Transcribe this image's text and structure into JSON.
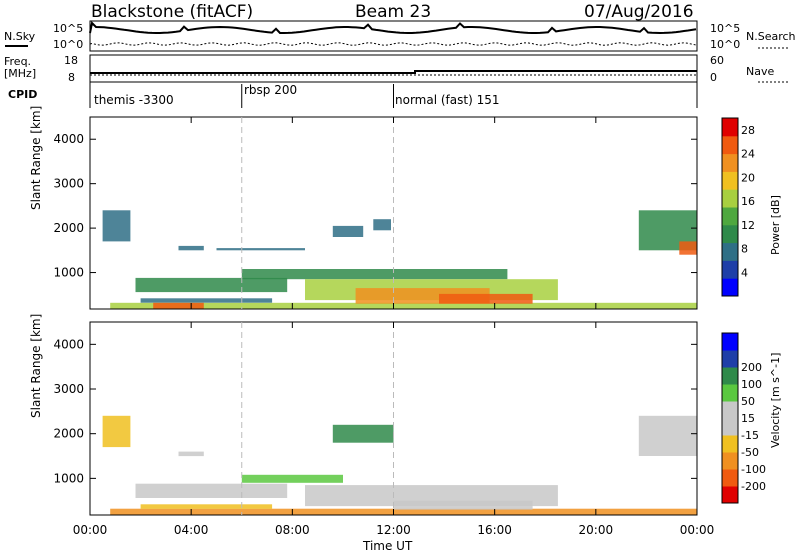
{
  "header": {
    "station": "Blackstone (fitACF)",
    "beam": "Beam 23",
    "date": "07/Aug/2016"
  },
  "nsky_panel": {
    "left_label": "N.Sky",
    "right_label": "N.Search",
    "left_ticks": [
      "10^5",
      "10^0"
    ],
    "right_ticks": [
      "10^5",
      "10^0"
    ]
  },
  "freq_panel": {
    "left_label_1": "Freq.",
    "left_label_2": "[MHz]",
    "right_label": "Nave",
    "left_ticks": [
      "18",
      "8"
    ],
    "right_ticks": [
      "60",
      "0"
    ]
  },
  "cpid_panel": {
    "label": "CPID",
    "modes": [
      {
        "name": "themis -3300",
        "start_hour": 0
      },
      {
        "name": "rbsp 200",
        "start_hour": 6
      },
      {
        "name": "normal (fast) 151",
        "start_hour": 12
      }
    ]
  },
  "chart_data": [
    {
      "type": "heatmap",
      "title": "",
      "xlabel": "",
      "ylabel": "Slant Range [km]",
      "xlim": [
        0,
        24
      ],
      "ylim": [
        180,
        4500
      ],
      "y_ticks": [
        1000,
        2000,
        3000,
        4000
      ],
      "y_tick_labels": [
        "1000",
        "2000",
        "3000",
        "4000"
      ],
      "colorbar": {
        "label": "Power [dB]",
        "ticks": [
          4,
          8,
          12,
          16,
          20,
          24,
          28
        ],
        "tick_labels": [
          "4",
          "8",
          "12",
          "16",
          "20",
          "24",
          "28"
        ],
        "range": [
          0,
          30
        ],
        "colors": [
          "#0000ff",
          "#1f3fa8",
          "#2f6f86",
          "#2f8a4a",
          "#4fa83f",
          "#a8d040",
          "#f0c020",
          "#f09020",
          "#f05a10",
          "#e00000"
        ]
      },
      "regions": [
        {
          "t0": 0.8,
          "t1": 24,
          "r0": 190,
          "r1": 320,
          "value": 16
        },
        {
          "t0": 1.8,
          "t1": 7.8,
          "r0": 560,
          "r1": 880,
          "value": 10
        },
        {
          "t0": 2.0,
          "t1": 7.2,
          "r0": 320,
          "r1": 420,
          "value": 6
        },
        {
          "t0": 2.5,
          "t1": 4.5,
          "r0": 190,
          "r1": 320,
          "value": 24
        },
        {
          "t0": 6.0,
          "t1": 16.5,
          "r0": 850,
          "r1": 1080,
          "value": 10
        },
        {
          "t0": 8.5,
          "t1": 18.5,
          "r0": 380,
          "r1": 850,
          "value": 15
        },
        {
          "t0": 10.5,
          "t1": 15.8,
          "r0": 300,
          "r1": 650,
          "value": 22
        },
        {
          "t0": 13.8,
          "t1": 17.5,
          "r0": 300,
          "r1": 520,
          "value": 24
        },
        {
          "t0": 0.5,
          "t1": 1.6,
          "r0": 1700,
          "r1": 2400,
          "value": 8
        },
        {
          "t0": 3.5,
          "t1": 4.5,
          "r0": 1500,
          "r1": 1600,
          "value": 6
        },
        {
          "t0": 5.0,
          "t1": 8.5,
          "r0": 1500,
          "r1": 1550,
          "value": 6
        },
        {
          "t0": 9.6,
          "t1": 10.8,
          "r0": 1800,
          "r1": 2050,
          "value": 6
        },
        {
          "t0": 11.2,
          "t1": 11.9,
          "r0": 1950,
          "r1": 2200,
          "value": 6
        },
        {
          "t0": 21.7,
          "t1": 24,
          "r0": 1500,
          "r1": 2400,
          "value": 11
        },
        {
          "t0": 23.3,
          "t1": 24,
          "r0": 1400,
          "r1": 1700,
          "value": 26
        }
      ]
    },
    {
      "type": "heatmap",
      "title": "",
      "xlabel": "Time UT",
      "ylabel": "Slant Range [km]",
      "xlim": [
        0,
        24
      ],
      "ylim": [
        180,
        4500
      ],
      "x_ticks": [
        0,
        4,
        8,
        12,
        16,
        20,
        24
      ],
      "x_tick_labels": [
        "00:00",
        "04:00",
        "08:00",
        "12:00",
        "16:00",
        "20:00",
        "00:00"
      ],
      "y_ticks": [
        1000,
        2000,
        3000,
        4000
      ],
      "y_tick_labels": [
        "1000",
        "2000",
        "3000",
        "4000"
      ],
      "colorbar": {
        "label": "Velocity [m s^-1]",
        "ticks": [
          -200,
          -100,
          -50,
          -15,
          15,
          50,
          100,
          200
        ],
        "tick_labels": [
          "-200",
          "-100",
          "-50",
          "-15",
          "15",
          "50",
          "100",
          "200"
        ],
        "colors": [
          "#e00000",
          "#f05a10",
          "#f09020",
          "#f0c020",
          "#c8c8c8",
          "#c8c8c8",
          "#5ac840",
          "#2f8a4a",
          "#1f3fa8",
          "#0000ff"
        ]
      },
      "regions": [
        {
          "t0": 0.8,
          "t1": 24,
          "r0": 190,
          "r1": 320,
          "value": -60
        },
        {
          "t0": 1.8,
          "t1": 7.8,
          "r0": 560,
          "r1": 880,
          "value": 0
        },
        {
          "t0": 2.0,
          "t1": 7.2,
          "r0": 320,
          "r1": 420,
          "value": -30
        },
        {
          "t0": 6.0,
          "t1": 10.0,
          "r0": 900,
          "r1": 1080,
          "value": 40
        },
        {
          "t0": 8.5,
          "t1": 18.5,
          "r0": 380,
          "r1": 850,
          "value": 0
        },
        {
          "t0": 12.0,
          "t1": 17.5,
          "r0": 300,
          "r1": 500,
          "value": -5
        },
        {
          "t0": 0.5,
          "t1": 1.6,
          "r0": 1700,
          "r1": 2400,
          "value": -20
        },
        {
          "t0": 3.5,
          "t1": 4.5,
          "r0": 1500,
          "r1": 1600,
          "value": 0
        },
        {
          "t0": 9.6,
          "t1": 12.0,
          "r0": 1800,
          "r1": 2200,
          "value": 60
        },
        {
          "t0": 21.7,
          "t1": 24,
          "r0": 1500,
          "r1": 2400,
          "value": 0
        }
      ]
    }
  ]
}
